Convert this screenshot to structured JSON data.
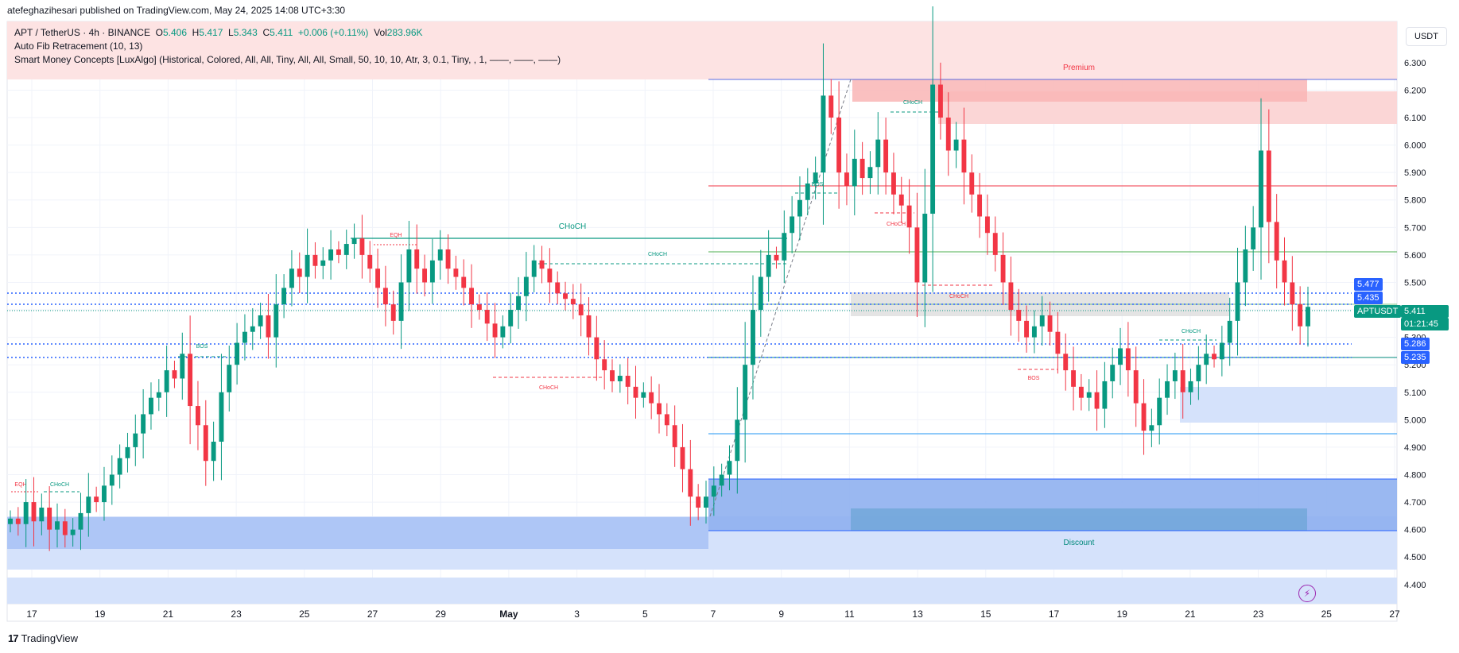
{
  "header": {
    "publish_line": "atefeghazihesari published on TradingView.com, May 24, 2025 14:08 UTC+3:30"
  },
  "legend": {
    "symbol_line": "APT / TetherUS · 4h · BINANCE",
    "open_label": "O",
    "open": "5.406",
    "high_label": "H",
    "high": "5.417",
    "low_label": "L",
    "low": "5.343",
    "close_label": "C",
    "close": "5.411",
    "change": "+0.006 (+0.11%)",
    "vol_label": "Vol",
    "vol": "283.96K",
    "indicator1": "Auto Fib Retracement (10, 13)",
    "indicator2": "Smart Money Concepts [LuxAlgo] (Historical, Colored, All, All, Tiny, All, All, Small, 50, 10, 10, Atr, 3, 0.1, Tiny, , 1, ——, ——, ——)"
  },
  "currency_button": "USDT",
  "footer": {
    "brand": "TradingView",
    "logo_icon": "tradingview-logo-icon"
  },
  "price_tags": {
    "t5477": "5.477",
    "t5435": "5.435",
    "symbol": "APTUSDT",
    "last": "5.411",
    "countdown": "01:21:45",
    "t5286": "5.286",
    "t5235": "5.235"
  },
  "colors": {
    "up": "#089981",
    "down": "#f23645",
    "premium_zone": "#f8d0d0",
    "discount_zone": "#b3c9f5",
    "dotted_level": "#2962ff",
    "tag_blue": "#2962ff",
    "tag_green": "#089981"
  },
  "chart_data": {
    "type": "candlestick",
    "symbol": "APT / TetherUS",
    "timeframe": "4h",
    "exchange": "BINANCE",
    "ylim": [
      4.33,
      6.45
    ],
    "y_ticks": [
      "6.300",
      "6.200",
      "6.100",
      "6.000",
      "5.900",
      "5.800",
      "5.700",
      "5.600",
      "5.500",
      "5.400",
      "5.300",
      "5.200",
      "5.100",
      "5.000",
      "4.900",
      "4.800",
      "4.700",
      "4.600",
      "4.500",
      "4.400"
    ],
    "x_ticks": [
      "17",
      "19",
      "21",
      "23",
      "25",
      "27",
      "29",
      "May",
      "3",
      "5",
      "7",
      "9",
      "11",
      "13",
      "15",
      "17",
      "19",
      "21",
      "23",
      "25",
      "27"
    ],
    "zone_labels": {
      "premium": "Premium",
      "discount": "Discount"
    },
    "structure_labels": [
      "EQH",
      "CHoCH",
      "BOS",
      "EQH",
      "CHoCH",
      "CHoCH",
      "CHoCH",
      "BOS",
      "CHoCH",
      "CHoCH",
      "CHoCH",
      "BOS",
      "CHoCH"
    ],
    "closes": [
      4.64,
      4.62,
      4.7,
      4.63,
      4.68,
      4.6,
      4.63,
      4.58,
      4.6,
      4.66,
      4.72,
      4.7,
      4.76,
      4.8,
      4.86,
      4.9,
      4.95,
      5.02,
      5.08,
      5.1,
      5.18,
      5.15,
      5.24,
      5.05,
      4.98,
      4.85,
      4.92,
      5.1,
      5.2,
      5.28,
      5.32,
      5.34,
      5.38,
      5.3,
      5.42,
      5.48,
      5.55,
      5.52,
      5.6,
      5.56,
      5.58,
      5.62,
      5.6,
      5.64,
      5.66,
      5.6,
      5.55,
      5.48,
      5.42,
      5.36,
      5.5,
      5.62,
      5.55,
      5.5,
      5.58,
      5.62,
      5.55,
      5.52,
      5.48,
      5.42,
      5.4,
      5.35,
      5.3,
      5.34,
      5.4,
      5.45,
      5.52,
      5.58,
      5.55,
      5.5,
      5.46,
      5.44,
      5.42,
      5.38,
      5.3,
      5.22,
      5.18,
      5.14,
      5.16,
      5.12,
      5.08,
      5.1,
      5.06,
      5.02,
      4.98,
      4.9,
      4.82,
      4.72,
      4.68,
      4.72,
      4.76,
      4.8,
      4.85,
      5.0,
      5.2,
      5.4,
      5.52,
      5.6,
      5.58,
      5.68,
      5.74,
      5.8,
      5.86,
      5.9,
      6.18,
      6.1,
      5.9,
      5.85,
      5.95,
      5.88,
      5.92,
      6.02,
      5.9,
      5.82,
      5.78,
      5.7,
      5.5,
      5.75,
      6.22,
      6.1,
      5.98,
      6.02,
      5.9,
      5.82,
      5.74,
      5.68,
      5.6,
      5.5,
      5.4,
      5.36,
      5.3,
      5.34,
      5.38,
      5.32,
      5.24,
      5.18,
      5.12,
      5.08,
      5.1,
      5.04,
      5.14,
      5.2,
      5.26,
      5.18,
      5.06,
      4.96,
      4.98,
      5.08,
      5.14,
      5.18,
      5.1,
      5.14,
      5.2,
      5.24,
      5.22,
      5.28,
      5.36,
      5.5,
      5.62,
      5.7,
      5.98,
      5.72,
      5.58,
      5.5,
      5.42,
      5.34,
      5.411
    ]
  }
}
